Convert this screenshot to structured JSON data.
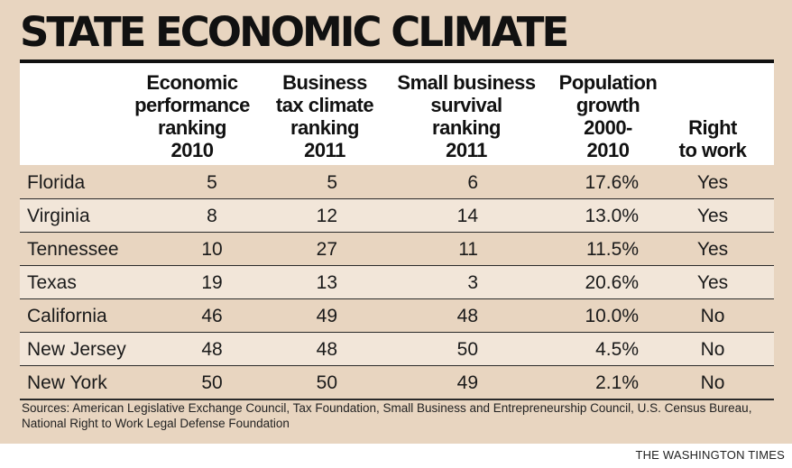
{
  "title": "STATE ECONOMIC CLIMATE",
  "chart_data": {
    "type": "table",
    "title": "STATE ECONOMIC CLIMATE",
    "columns": [
      [
        "Economic",
        "performance",
        "ranking",
        "2010"
      ],
      [
        "Business",
        "tax climate",
        "ranking",
        "2011"
      ],
      [
        "Small business",
        "survival",
        "ranking",
        "2011"
      ],
      [
        "Population",
        "growth",
        "2000-",
        "2010"
      ],
      [
        "Right",
        "to work"
      ]
    ],
    "rows": [
      {
        "state": "Florida",
        "econ": "5",
        "tax": "5",
        "small": "6",
        "pop": "17.6%",
        "rtw": "Yes"
      },
      {
        "state": "Virginia",
        "econ": "8",
        "tax": "12",
        "small": "14",
        "pop": "13.0%",
        "rtw": "Yes"
      },
      {
        "state": "Tennessee",
        "econ": "10",
        "tax": "27",
        "small": "11",
        "pop": "11.5%",
        "rtw": "Yes"
      },
      {
        "state": "Texas",
        "econ": "19",
        "tax": "13",
        "small": "3",
        "pop": "20.6%",
        "rtw": "Yes"
      },
      {
        "state": "California",
        "econ": "46",
        "tax": "49",
        "small": "48",
        "pop": "10.0%",
        "rtw": "No"
      },
      {
        "state": "New Jersey",
        "econ": "48",
        "tax": "48",
        "small": "50",
        "pop": "4.5%",
        "rtw": "No"
      },
      {
        "state": "New York",
        "econ": "50",
        "tax": "50",
        "small": "49",
        "pop": "2.1%",
        "rtw": "No"
      }
    ]
  },
  "sources": "Sources: American Legislative Exchange Council, Tax Foundation, Small Business and Entrepreneurship Council, U.S. Census Bureau, National Right to Work Legal Defense Foundation",
  "credit": "THE WASHINGTON TIMES",
  "colors": {
    "panel": "#e8d5c0",
    "row_alt": "#f2e6d9",
    "header": "#ffffff",
    "rule": "#111111"
  }
}
